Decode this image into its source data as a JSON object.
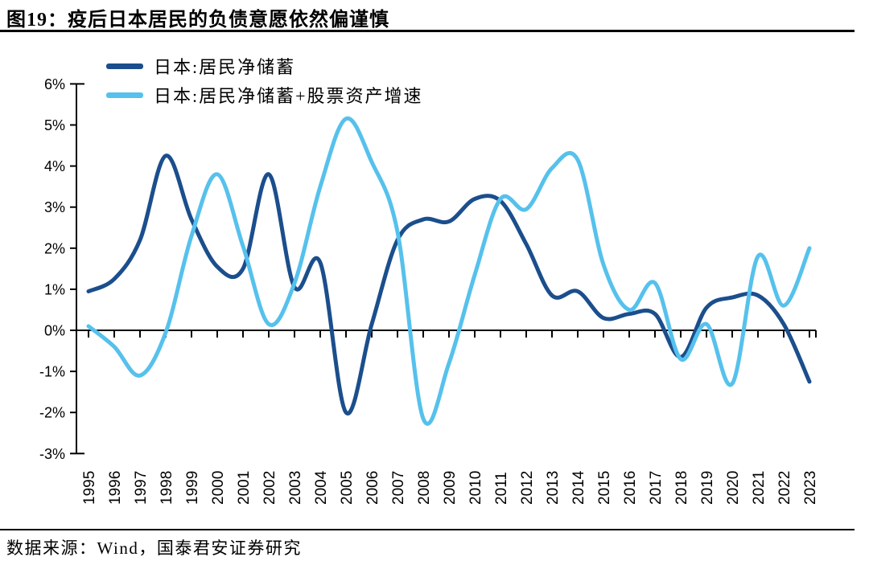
{
  "page": {
    "title": "图19：疫后日本居民的负债意愿依然偏谨慎",
    "source": "数据来源：Wind，国泰君安证券研究"
  },
  "chart_data": {
    "type": "line",
    "title": "图19：疫后日本居民的负债意愿依然偏谨慎",
    "categories": [
      1995,
      1996,
      1997,
      1998,
      1999,
      2000,
      2001,
      2002,
      2003,
      2004,
      2005,
      2006,
      2007,
      2008,
      2009,
      2010,
      2011,
      2012,
      2013,
      2014,
      2015,
      2016,
      2017,
      2018,
      2019,
      2020,
      2021,
      2022,
      2023
    ],
    "x_tick_labels": [
      "1995",
      "1996",
      "1997",
      "1998",
      "1999",
      "2000",
      "2001",
      "2002",
      "2003",
      "2004",
      "2005",
      "2006",
      "2007",
      "2008",
      "2009",
      "2010",
      "2011",
      "2012",
      "2013",
      "2014",
      "2015",
      "2016",
      "2017",
      "2018",
      "2019",
      "2020",
      "2021",
      "2022",
      "2023"
    ],
    "series": [
      {
        "name": "日本:居民净储蓄",
        "color": "#1B4E8C",
        "values": [
          0.95,
          1.25,
          2.2,
          4.25,
          2.7,
          1.55,
          1.5,
          3.8,
          1.05,
          1.65,
          -2.0,
          0.15,
          2.2,
          2.7,
          2.65,
          3.2,
          3.15,
          2.1,
          0.85,
          0.95,
          0.3,
          0.4,
          0.4,
          -0.65,
          0.55,
          0.8,
          0.85,
          0.15,
          -1.25
        ]
      },
      {
        "name": "日本:居民净储蓄+股票资产增速",
        "color": "#56C1EC",
        "values": [
          0.1,
          -0.4,
          -1.1,
          -0.05,
          2.3,
          3.8,
          2.05,
          0.15,
          1.15,
          3.5,
          5.15,
          4.1,
          2.4,
          -2.15,
          -0.8,
          1.35,
          3.2,
          2.95,
          3.95,
          4.15,
          1.6,
          0.5,
          1.15,
          -0.7,
          0.15,
          -1.3,
          1.8,
          0.6,
          2.0
        ]
      }
    ],
    "y_axis": {
      "unit": "%",
      "min": -3,
      "max": 6,
      "step": 1,
      "tick_labels": [
        "6%",
        "5%",
        "4%",
        "3%",
        "2%",
        "1%",
        "0%",
        "-1%",
        "-2%",
        "-3%"
      ]
    },
    "grid": false,
    "legend_position": "top-left",
    "axis_color": "#000000",
    "line_smoothing": true
  }
}
